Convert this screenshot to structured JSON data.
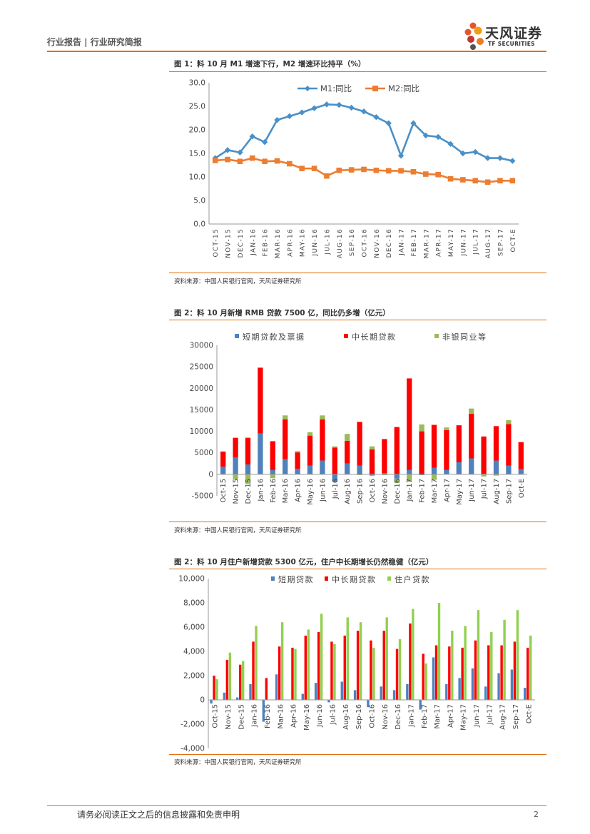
{
  "header": {
    "left": "行业报告 | 行业研究简报",
    "logo_cn": "天风证券",
    "logo_en": "TF SECURITIES"
  },
  "figures": [
    {
      "title": "图 1：料 10 月 M1 增速下行，M2 增速环比持平（%）",
      "source": "资料来源：中国人民银行官网，天风证券研究所"
    },
    {
      "title": "图 2：料 10 月新增 RMB 贷款 7500 亿，同比仍多增（亿元）",
      "source": "资料来源：中国人民银行官网，天风证券研究所"
    },
    {
      "title": "图 2：料 10 月住户新增贷款 5300 亿元，住户中长期增长仍然稳健（亿元）",
      "source": "资料来源：中国人民银行官网，天风证券研究所"
    }
  ],
  "footer": {
    "disclaimer": "请务必阅读正文之后的信息披露和免责申明",
    "page": "2"
  },
  "chart_data": [
    {
      "type": "line",
      "categories": [
        "OCT-15",
        "NOV-15",
        "DEC-15",
        "JAN-16",
        "FEB-16",
        "MAR-16",
        "APR-16",
        "MAY-16",
        "JUN-16",
        "JUL-16",
        "AUG-16",
        "SEP-16",
        "OCT-16",
        "NOV-16",
        "DEC-16",
        "JAN-17",
        "FEB-17",
        "MAR-17",
        "APR-17",
        "MAY-17",
        "JUN-17",
        "JUL-17",
        "AUG-17",
        "SEP-17",
        "OCT-E"
      ],
      "series": [
        {
          "name": "M1:同比",
          "color": "#4a90c8",
          "marker": "diamond",
          "values": [
            14.0,
            15.7,
            15.2,
            18.6,
            17.4,
            22.1,
            22.9,
            23.7,
            24.6,
            25.4,
            25.3,
            24.7,
            23.9,
            22.7,
            21.4,
            14.5,
            21.4,
            18.8,
            18.5,
            17.0,
            15.0,
            15.3,
            14.0,
            14.0,
            13.4
          ]
        },
        {
          "name": "M2:同比",
          "color": "#ed7d31",
          "marker": "square",
          "values": [
            13.5,
            13.7,
            13.3,
            14.0,
            13.3,
            13.4,
            12.8,
            11.8,
            11.8,
            10.2,
            11.4,
            11.5,
            11.6,
            11.4,
            11.3,
            11.3,
            11.1,
            10.6,
            10.5,
            9.6,
            9.4,
            9.2,
            8.9,
            9.2,
            9.2
          ]
        }
      ],
      "ylim": [
        0,
        30
      ],
      "yticks": [
        "0.0",
        "5.0",
        "10.0",
        "15.0",
        "20.0",
        "25.0",
        "30.0"
      ],
      "legend": "top"
    },
    {
      "type": "bar",
      "stacked": true,
      "categories": [
        "Oct-15",
        "Nov-15",
        "Dec-15",
        "Jan-16",
        "Feb-16",
        "Mar-16",
        "Apr-16",
        "May-16",
        "Jun-16",
        "Jul-16",
        "Aug-16",
        "Sep-16",
        "Oct-16",
        "Nov-16",
        "Dec-16",
        "Jan-17",
        "Feb-17",
        "Mar-17",
        "Apr-17",
        "May-17",
        "Jun-17",
        "Jul-17",
        "Aug-17",
        "Sep-17",
        "Oct-E"
      ],
      "series": [
        {
          "name": "短期贷款及票据",
          "color": "#4f81bd",
          "values": [
            1800,
            3900,
            2300,
            9500,
            1000,
            3500,
            1300,
            2000,
            3200,
            -1700,
            2500,
            2000,
            -300,
            300,
            -1000,
            1000,
            -200,
            1500,
            1000,
            2800,
            3700,
            100,
            3200,
            2000,
            1200
          ]
        },
        {
          "name": "中长期贷款",
          "color": "#ff0000",
          "values": [
            3500,
            4600,
            6200,
            15300,
            6700,
            9300,
            3800,
            7000,
            9600,
            6200,
            5300,
            10200,
            5800,
            7900,
            11000,
            21300,
            10000,
            10000,
            9300,
            8600,
            10400,
            8700,
            8000,
            9700,
            6300
          ]
        },
        {
          "name": "非银同业等",
          "color": "#9bbb59",
          "values": [
            0,
            -1200,
            -2200,
            0,
            -900,
            900,
            300,
            800,
            900,
            300,
            1600,
            -200,
            700,
            -200,
            -1000,
            -1700,
            1600,
            -1300,
            600,
            0,
            1200,
            -500,
            -300,
            900,
            0
          ]
        }
      ],
      "ylim": [
        -5000,
        30000
      ],
      "yticks": [
        "-5000",
        "0",
        "5000",
        "10000",
        "15000",
        "20000",
        "25000",
        "30000"
      ],
      "legend": "top"
    },
    {
      "type": "bar",
      "categories": [
        "Oct-15",
        "Nov-15",
        "Dec-15",
        "Jan-16",
        "Feb-16",
        "Mar-16",
        "Apr-16",
        "May-16",
        "Jun-16",
        "Jul-16",
        "Aug-16",
        "Sep-16",
        "Oct-16",
        "Nov-16",
        "Dec-16",
        "Jan-17",
        "Feb-17",
        "Mar-17",
        "Apr-17",
        "May-17",
        "Jun-17",
        "Jul-17",
        "Aug-17",
        "Sep-17",
        "Oct-E"
      ],
      "series": [
        {
          "name": "短期贷款",
          "color": "#4f81bd",
          "values": [
            -300,
            600,
            200,
            1300,
            -1800,
            2100,
            0,
            500,
            1400,
            -200,
            1500,
            800,
            -600,
            1100,
            800,
            1300,
            -800,
            3500,
            1300,
            1800,
            2600,
            1100,
            2200,
            2500,
            1000
          ]
        },
        {
          "name": "中长期贷款",
          "color": "#ff0000",
          "values": [
            2000,
            3300,
            2900,
            4800,
            1800,
            4400,
            4300,
            5300,
            5600,
            4800,
            5300,
            5700,
            4900,
            5700,
            4200,
            6300,
            3800,
            4500,
            4400,
            4300,
            4900,
            4500,
            4500,
            4800,
            4300
          ]
        },
        {
          "name": "住户贷款",
          "color": "#92d050",
          "values": [
            1700,
            3900,
            3200,
            6100,
            0,
            6400,
            4200,
            5800,
            7100,
            4600,
            6800,
            6400,
            4300,
            6800,
            5000,
            7500,
            3000,
            8000,
            5700,
            6100,
            7400,
            5600,
            6600,
            7400,
            5300
          ]
        }
      ],
      "ylim": [
        -4000,
        10000
      ],
      "yticks": [
        "-4,000",
        "-2,000",
        "0",
        "2,000",
        "4,000",
        "6,000",
        "8,000",
        "10,000"
      ],
      "legend": "top"
    }
  ]
}
